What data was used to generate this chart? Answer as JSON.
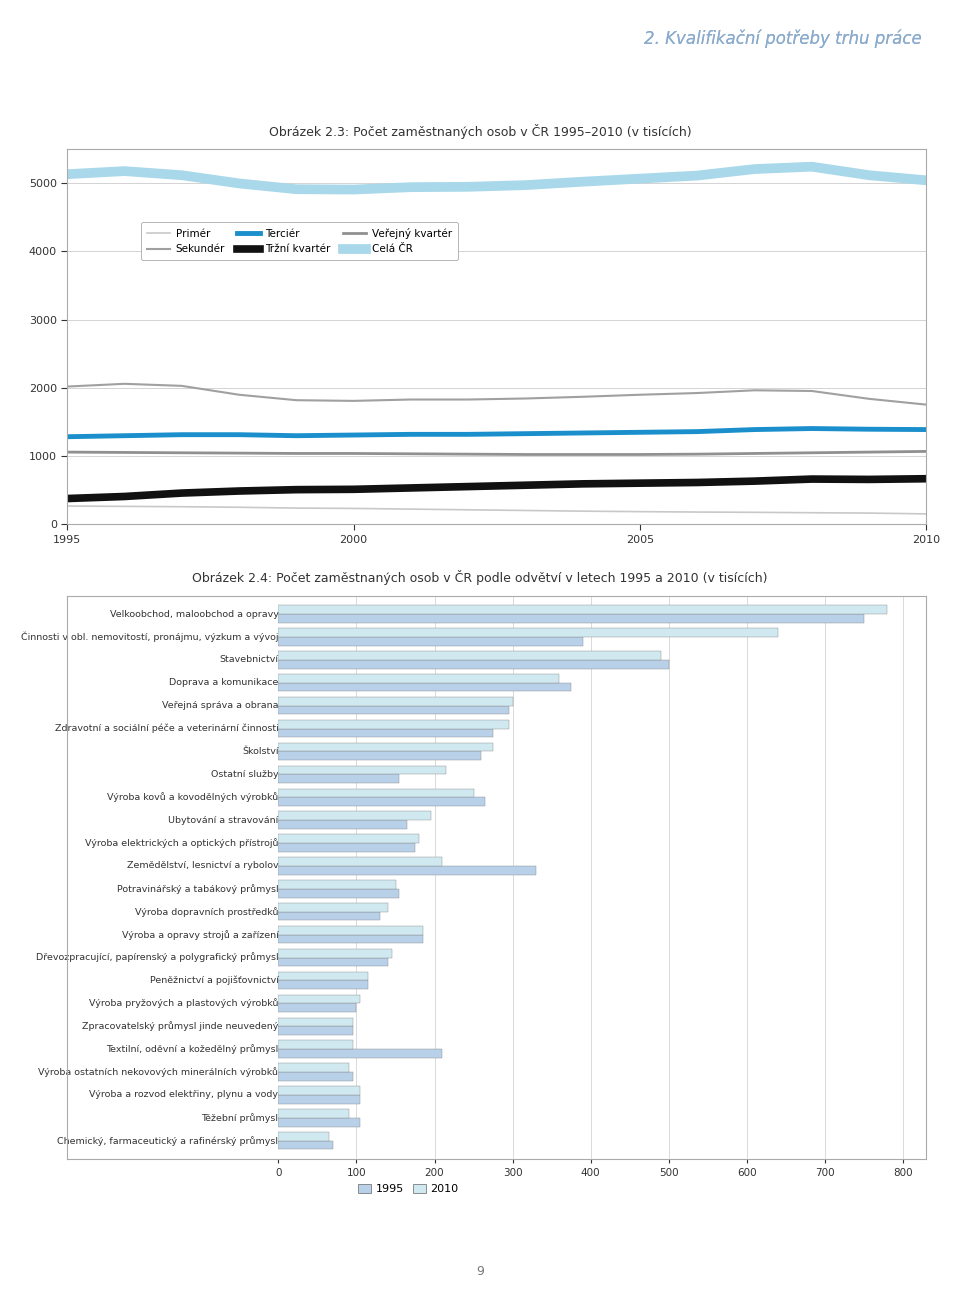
{
  "page_title": "2. Kvalifikační potřeby trhu práce",
  "chart1_title_bold": "Obrázek 2.3: Počet zaměstnaných osob v ČR 1995–2010",
  "chart1_title_normal": " (v tisících)",
  "chart2_title_bold": "Obrázek 2.4: Počet zaměstnaných osob v ČR podle odvětví v letech 1995 a 2010",
  "chart2_title_normal": " (v tisících)",
  "years": [
    1995,
    1996,
    1997,
    1998,
    1999,
    2000,
    2001,
    2002,
    2003,
    2004,
    2005,
    2006,
    2007,
    2008,
    2009,
    2010
  ],
  "series_order": [
    "Primér",
    "Sekundér",
    "Terciér",
    "Tržní kvartér",
    "Veřejný kvartér",
    "Celá ČR"
  ],
  "series": {
    "Primér": [
      270,
      265,
      260,
      252,
      240,
      235,
      225,
      215,
      205,
      195,
      188,
      182,
      178,
      172,
      167,
      155
    ],
    "Sekundér": [
      2020,
      2060,
      2030,
      1900,
      1820,
      1810,
      1830,
      1830,
      1845,
      1870,
      1900,
      1925,
      1965,
      1955,
      1840,
      1755
    ],
    "Terciér": [
      1285,
      1300,
      1315,
      1315,
      1300,
      1310,
      1320,
      1320,
      1330,
      1340,
      1350,
      1360,
      1390,
      1405,
      1395,
      1390
    ],
    "Tržní kvartér": [
      380,
      410,
      460,
      490,
      510,
      515,
      535,
      555,
      575,
      595,
      605,
      615,
      635,
      665,
      660,
      670
    ],
    "Veřejný kvartér": [
      1060,
      1055,
      1050,
      1045,
      1040,
      1040,
      1035,
      1030,
      1025,
      1025,
      1025,
      1030,
      1040,
      1050,
      1060,
      1070
    ],
    "Celá ČR": [
      5130,
      5175,
      5115,
      4995,
      4910,
      4905,
      4940,
      4945,
      4970,
      5020,
      5065,
      5110,
      5205,
      5240,
      5115,
      5040
    ]
  },
  "series_colors": {
    "Primér": "#c8c8c8",
    "Sekundér": "#a0a0a0",
    "Terciér": "#1b8fcc",
    "Tržní kvartér": "#111111",
    "Veřejný kvartér": "#909090",
    "Celá ČR": "#a8d8ea"
  },
  "series_linewidths": {
    "Primér": 1.2,
    "Sekundér": 1.5,
    "Terciér": 3.5,
    "Tržní kvartér": 5.5,
    "Veřejný kvartér": 2.0,
    "Celá ČR": 7.0
  },
  "chart2_categories": [
    "Velkoobchod, maloobchod a opravy",
    "Činnosti v obl. nemovitostí, pronájmu, výzkum a vývoj",
    "Stavebnictví",
    "Doprava a komunikace",
    "Veřejná správa a obrana",
    "Zdravotní a sociální péče a veterinární činnosti",
    "Školství",
    "Ostatní služby",
    "Výroba kovů a kovodělných výrobků",
    "Ubytování a stravování",
    "Výroba elektrických a optických přístrojů",
    "Zemědělství, lesnictví a rybolov",
    "Potravinářský a tabákový průmysl",
    "Výroba dopravních prostředků",
    "Výroba a opravy strojů a zařízení",
    "Dřevozpracující, papírenský a polygrafický průmysl",
    "Peněžnictví a pojišťovnictví",
    "Výroba pryžových a plastových výrobků",
    "Zpracovatelský průmysl jinde neuvedený",
    "Textilní, oděvní a kožedělný průmysl",
    "Výroba ostatních nekovových minerálních výrobků",
    "Výroba a rozvod elektřiny, plynu a vody",
    "Těžební průmysl",
    "Chemický, farmaceutický a rafinérský průmysl"
  ],
  "values_1995": [
    750,
    390,
    500,
    375,
    295,
    275,
    260,
    155,
    265,
    165,
    175,
    330,
    155,
    130,
    185,
    140,
    115,
    100,
    95,
    210,
    95,
    105,
    105,
    70
  ],
  "values_2010": [
    780,
    640,
    490,
    360,
    300,
    295,
    275,
    215,
    250,
    195,
    180,
    210,
    150,
    140,
    185,
    145,
    115,
    105,
    95,
    95,
    90,
    105,
    90,
    65
  ],
  "bar_color_1995": "#b8d0e8",
  "bar_color_2010": "#d0e8f0",
  "bar_edge_color": "#888888",
  "background_color": "#ffffff",
  "header_bg": "#d8e8f4",
  "chart_border_color": "#aaaaaa",
  "grid_color": "#cccccc",
  "text_color": "#333333",
  "axis_color": "#999999"
}
